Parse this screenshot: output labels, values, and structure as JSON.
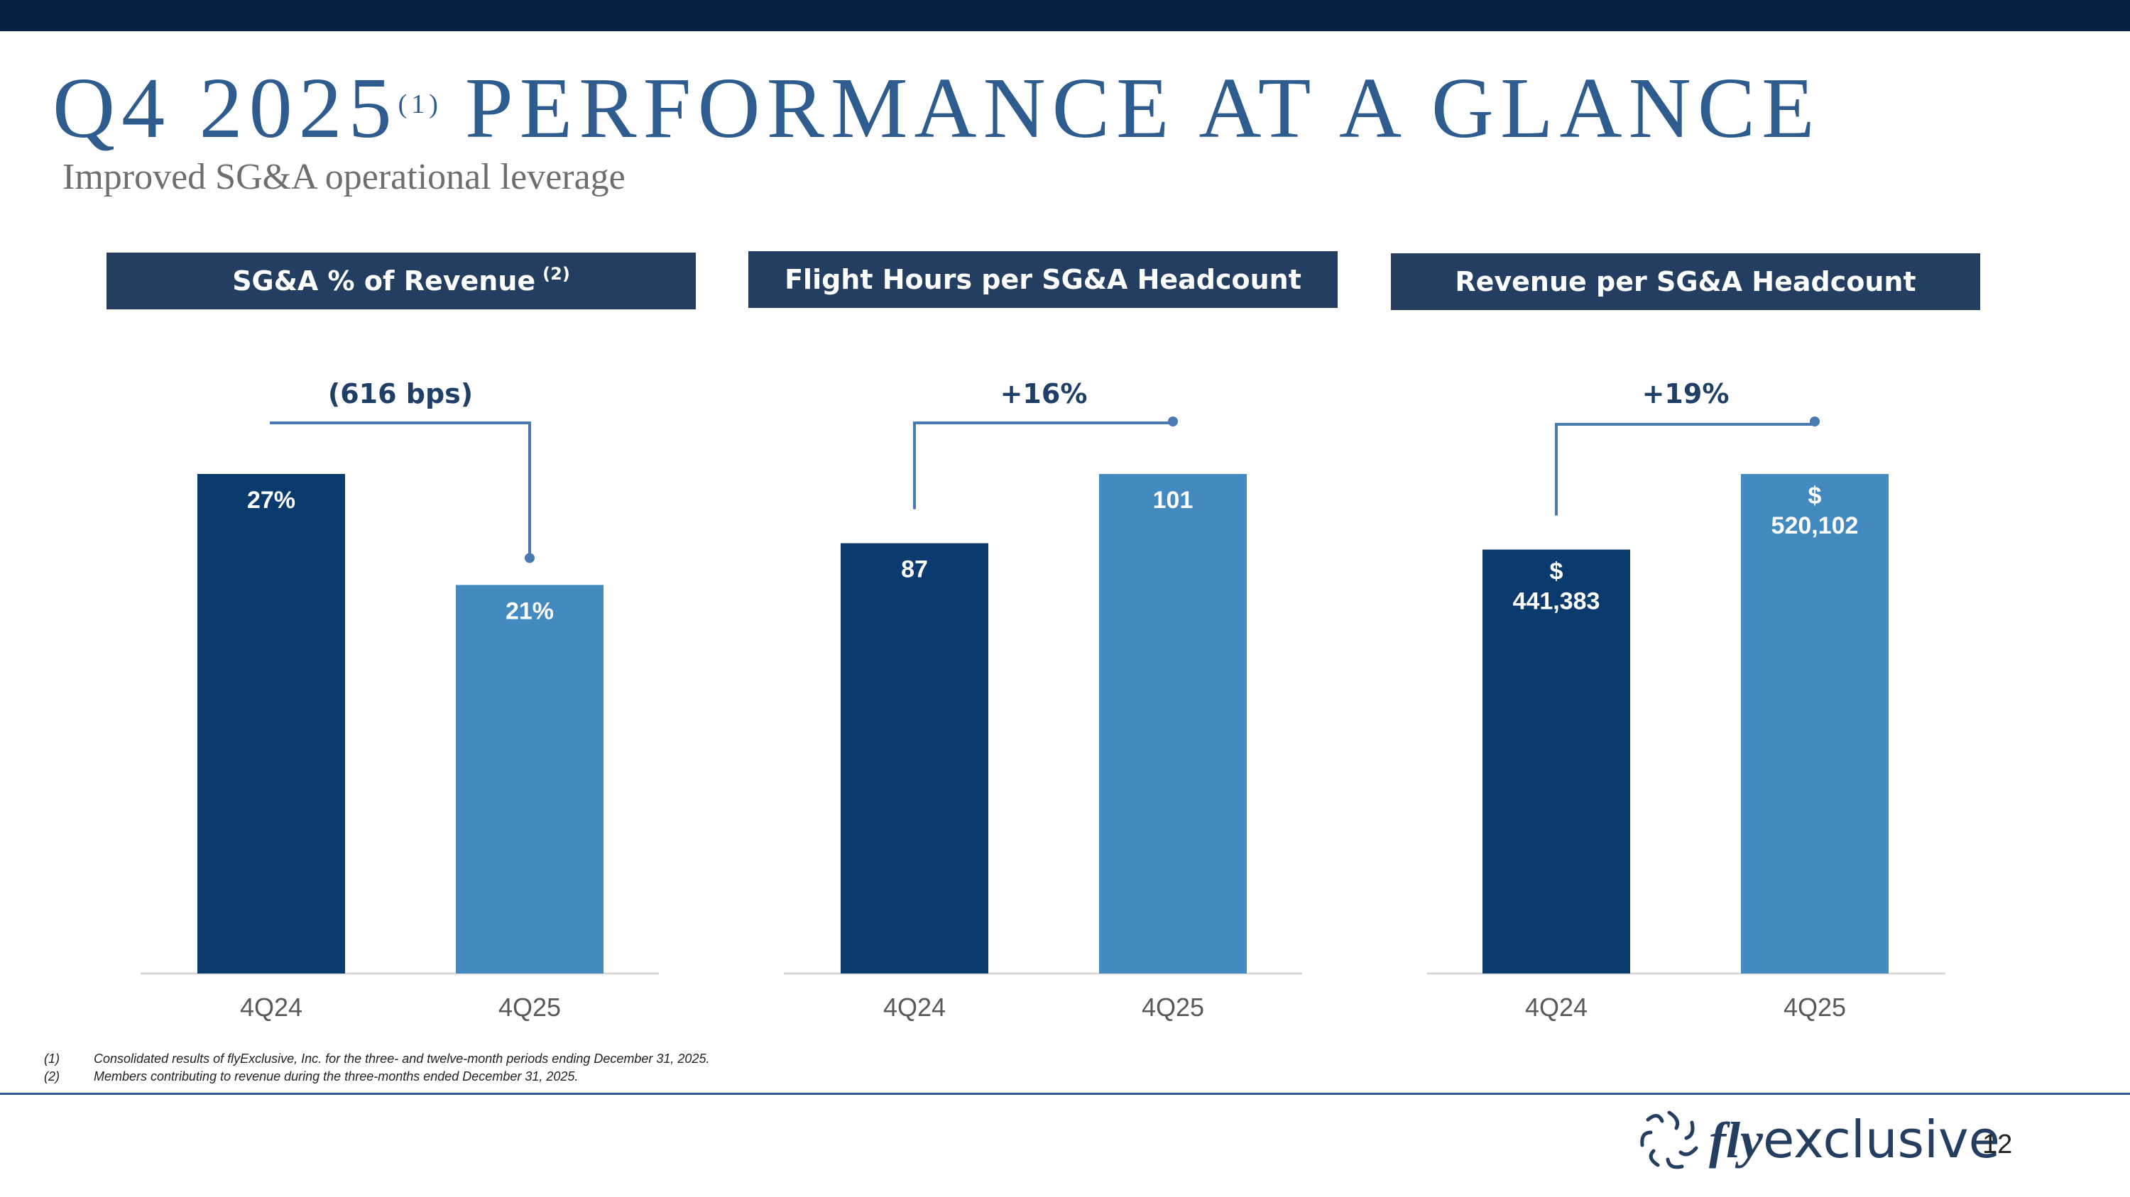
{
  "title": {
    "main_a": "Q4 2025",
    "sup": "(1)",
    "main_b": "PERFORMANCE AT A GLANCE"
  },
  "subtitle": "Improved SG&A operational leverage",
  "colors": {
    "dark_bar": "#0b3a6f",
    "light_bar": "#428abf",
    "accent_line": "#4a78b0",
    "header_bg": "#243e61",
    "change_label": "#1f3f66"
  },
  "chart_data": [
    {
      "type": "bar",
      "title": "SG&A % of Revenue",
      "title_sup": "(2)",
      "categories": [
        "4Q24",
        "4Q25"
      ],
      "values": [
        27,
        21
      ],
      "value_labels": [
        [
          "27%"
        ],
        [
          "21%"
        ]
      ],
      "ylim": [
        0,
        27
      ],
      "change_label": "(616 bps)",
      "xlabel": "",
      "ylabel": ""
    },
    {
      "type": "bar",
      "title": "Flight Hours per SG&A Headcount",
      "categories": [
        "4Q24",
        "4Q25"
      ],
      "values": [
        87,
        101
      ],
      "value_labels": [
        [
          "87"
        ],
        [
          "101"
        ]
      ],
      "ylim": [
        0,
        101
      ],
      "change_label": "+16%",
      "xlabel": "",
      "ylabel": ""
    },
    {
      "type": "bar",
      "title": "Revenue per SG&A Headcount",
      "categories": [
        "4Q24",
        "4Q25"
      ],
      "values": [
        441383,
        520102
      ],
      "value_labels": [
        [
          "$",
          "441,383"
        ],
        [
          "$",
          "520,102"
        ]
      ],
      "ylim": [
        0,
        520102
      ],
      "change_label": "+19%",
      "xlabel": "",
      "ylabel": ""
    }
  ],
  "footnotes": [
    {
      "num": "(1)",
      "text": "Consolidated results of flyExclusive, Inc. for the three- and twelve-month periods ending December 31, 2025."
    },
    {
      "num": "(2)",
      "text": "Members contributing to revenue during the three-months ended December 31, 2025."
    }
  ],
  "logo": {
    "brand_fly": "fly",
    "brand_rest": "exclusive",
    "icon": "flyexclusive-swirl-logo-icon"
  },
  "page_number": "12"
}
